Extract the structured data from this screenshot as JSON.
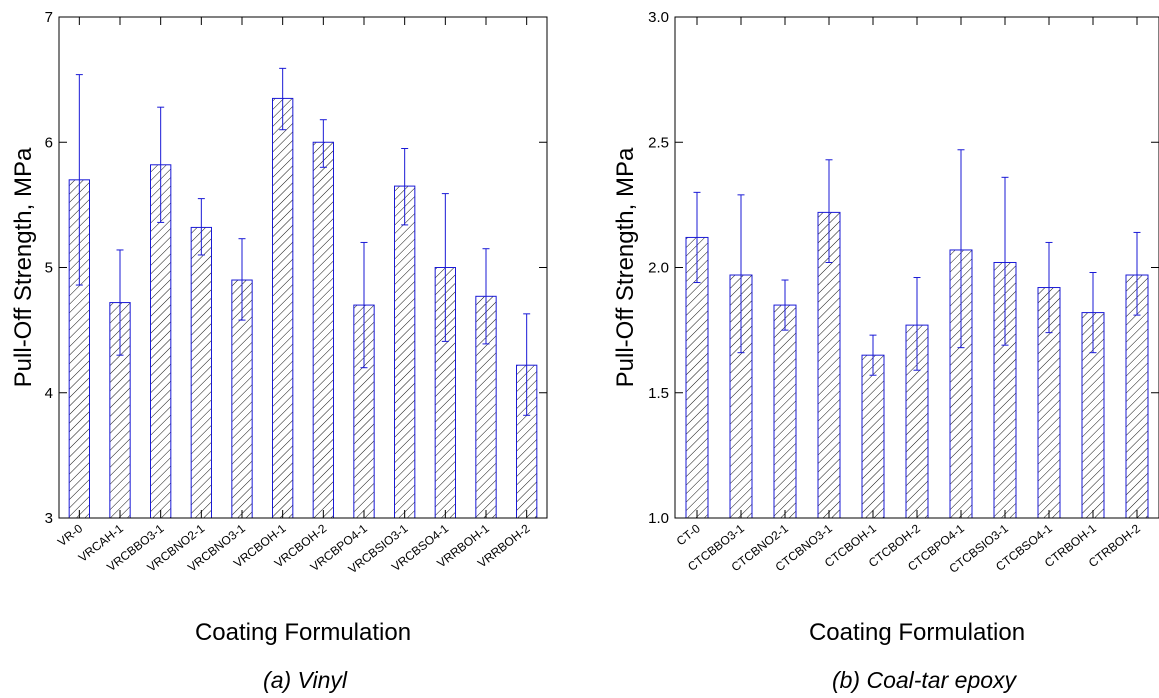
{
  "colors": {
    "bar_stroke": "#1a1ad6",
    "hatch": "#111111",
    "axes": "#000000",
    "background": "#ffffff"
  },
  "chart_data": [
    {
      "type": "bar",
      "caption": "(a) Vinyl",
      "xlabel": "Coating Formulation",
      "ylabel": "Pull-Off Strength, MPa",
      "ylim": [
        3,
        7
      ],
      "yticks": [
        3,
        4,
        5,
        6,
        7
      ],
      "ytick_labels": [
        "3",
        "4",
        "5",
        "6",
        "7"
      ],
      "grid": false,
      "legend": "none",
      "bar_style": "diagonal hatch, no fill",
      "categories": [
        "VR-0",
        "VRCAH-1",
        "VRCBBO3-1",
        "VRCBNO2-1",
        "VRCBNO3-1",
        "VRCBOH-1",
        "VRCBOH-2",
        "VRCBPO4-1",
        "VRCBSIO3-1",
        "VRCBSO4-1",
        "VRRBOH-1",
        "VRRBOH-2"
      ],
      "values": [
        5.7,
        4.72,
        5.82,
        5.32,
        4.9,
        6.35,
        6.0,
        4.7,
        5.65,
        5.0,
        4.77,
        4.22
      ],
      "error_low": [
        4.86,
        4.3,
        5.36,
        5.1,
        4.58,
        6.1,
        5.8,
        4.2,
        5.34,
        4.41,
        4.39,
        3.82
      ],
      "error_high": [
        6.54,
        5.14,
        6.28,
        5.55,
        5.23,
        6.59,
        6.18,
        5.2,
        5.95,
        5.59,
        5.15,
        4.63
      ]
    },
    {
      "type": "bar",
      "caption": "(b) Coal-tar epoxy",
      "xlabel": "Coating Formulation",
      "ylabel": "Pull-Off Strength, MPa",
      "ylim": [
        1.0,
        3.0
      ],
      "yticks": [
        1.0,
        1.5,
        2.0,
        2.5,
        3.0
      ],
      "ytick_labels": [
        "1.0",
        "1.5",
        "2.0",
        "2.5",
        "3.0"
      ],
      "grid": false,
      "legend": "none",
      "bar_style": "diagonal hatch, no fill",
      "categories": [
        "CT-0",
        "CTCBBO3-1",
        "CTCBNO2-1",
        "CTCBNO3-1",
        "CTCBOH-1",
        "CTCBOH-2",
        "CTCBPO4-1",
        "CTCBSIO3-1",
        "CTCBSO4-1",
        "CTRBOH-1",
        "CTRBOH-2"
      ],
      "values": [
        2.12,
        1.97,
        1.85,
        2.22,
        1.65,
        1.77,
        2.07,
        2.02,
        1.92,
        1.82,
        1.97
      ],
      "error_low": [
        1.94,
        1.66,
        1.75,
        2.02,
        1.57,
        1.59,
        1.68,
        1.69,
        1.74,
        1.66,
        1.81
      ],
      "error_high": [
        2.3,
        2.29,
        1.95,
        2.43,
        1.73,
        1.96,
        2.47,
        2.36,
        2.1,
        1.98,
        2.14
      ]
    }
  ]
}
